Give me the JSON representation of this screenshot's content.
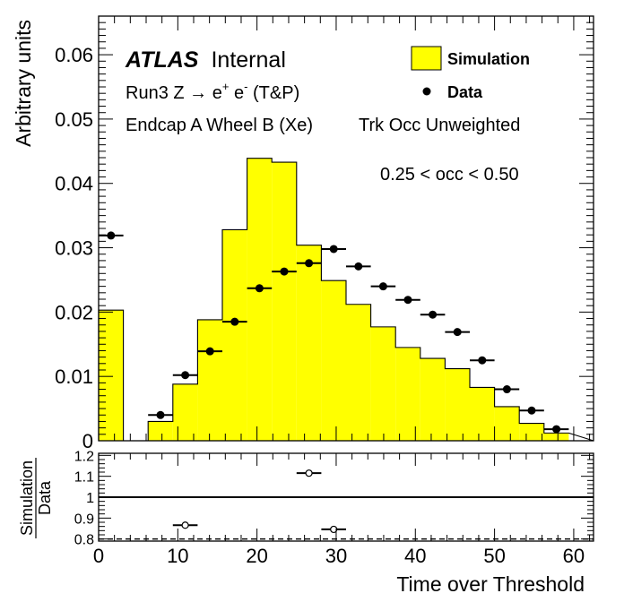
{
  "chart_data": [
    {
      "type": "histogram",
      "xlim": [
        0,
        62.5
      ],
      "ylim": [
        0,
        0.066
      ],
      "ylabel": "Arbitrary units",
      "xlabel": "Time over Threshold",
      "yticks": [
        "0",
        "0.01",
        "0.02",
        "0.03",
        "0.04",
        "0.05",
        "0.06"
      ],
      "ytick_values": [
        0,
        0.01,
        0.02,
        0.03,
        0.04,
        0.05,
        0.06
      ],
      "xticks": [
        "0",
        "10",
        "20",
        "30",
        "40",
        "50",
        "60"
      ],
      "xtick_values": [
        0,
        10,
        20,
        30,
        40,
        50,
        60
      ],
      "bin_width": 3.125,
      "series": [
        {
          "name": "Simulation",
          "style": "filled-step",
          "color": "#ffff00",
          "bin_edges": [
            0,
            3.125,
            6.25,
            9.375,
            12.5,
            15.625,
            18.75,
            21.875,
            25,
            28.125,
            31.25,
            34.375,
            37.5,
            40.625,
            43.75,
            46.875,
            50,
            53.125,
            56.25,
            59.375
          ],
          "values": [
            0.0203,
            0,
            0.003,
            0.0088,
            0.0188,
            0.0328,
            0.0439,
            0.0433,
            0.0304,
            0.0249,
            0.0212,
            0.0177,
            0.0145,
            0.0128,
            0.0112,
            0.0083,
            0.0053,
            0.0027,
            0.0012
          ]
        },
        {
          "name": "Data",
          "style": "markers",
          "color": "#000000",
          "x": [
            1.5625,
            7.8125,
            10.9375,
            14.0625,
            17.1875,
            20.3125,
            23.4375,
            26.5625,
            29.6875,
            32.8125,
            35.9375,
            39.0625,
            42.1875,
            45.3125,
            48.4375,
            51.5625,
            54.6875,
            57.8125
          ],
          "values": [
            0.0319,
            0.004,
            0.0102,
            0.0139,
            0.0185,
            0.0237,
            0.0263,
            0.0276,
            0.0298,
            0.0271,
            0.024,
            0.0219,
            0.0196,
            0.0169,
            0.0125,
            0.008,
            0.0047,
            0.0018
          ]
        }
      ],
      "legend": {
        "position": "top-right",
        "entries": [
          "Simulation",
          "Data"
        ]
      },
      "annotations": {
        "atlas": "ATLAS",
        "internal": "Internal",
        "line1_prefix": "Run3 Z → e",
        "line1_sup1": "+",
        "line1_mid": " e",
        "line1_sup2": "-",
        "line1_suffix": " (T&P)",
        "line2a": "Endcap A Wheel B (Xe)",
        "line2b": "Trk Occ Unweighted",
        "line3": "0.25 < occ < 0.50"
      }
    },
    {
      "type": "ratio",
      "xlim": [
        0,
        62.5
      ],
      "ylim": [
        0.79,
        1.21
      ],
      "ylabel_num": "Simulation",
      "ylabel_den": "Data",
      "yticks": [
        "0.8",
        "0.9",
        "1",
        "1.1",
        "1.2"
      ],
      "ytick_values": [
        0.8,
        0.9,
        1.0,
        1.1,
        1.2
      ],
      "xticks": [
        "0",
        "10",
        "20",
        "30",
        "40",
        "50",
        "60"
      ],
      "xtick_values": [
        0,
        10,
        20,
        30,
        40,
        50,
        60
      ],
      "reference_line": 1.0,
      "dashed_line": 0.8,
      "points": {
        "x": [
          10.9375,
          26.5625,
          29.6875
        ],
        "values": [
          0.866,
          1.115,
          0.846
        ]
      }
    }
  ]
}
